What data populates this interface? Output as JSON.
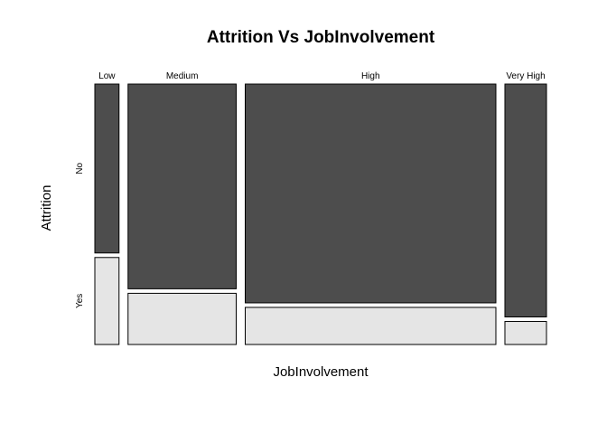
{
  "chart_data": {
    "type": "mosaic",
    "title": "Attrition Vs JobInvolvement",
    "xlabel": "JobInvolvement",
    "ylabel": "Attrition",
    "categories": [
      "Low",
      "Medium",
      "High",
      "Very High"
    ],
    "responses": [
      "No",
      "Yes"
    ],
    "column_proportions": [
      0.057,
      0.255,
      0.591,
      0.098
    ],
    "series": [
      {
        "name": "No",
        "values": [
          0.66,
          0.8,
          0.855,
          0.91
        ]
      },
      {
        "name": "Yes",
        "values": [
          0.34,
          0.2,
          0.145,
          0.09
        ]
      }
    ],
    "colors": {
      "No": "#4d4d4d",
      "Yes": "#e5e5e5",
      "stroke": "#000000"
    }
  }
}
